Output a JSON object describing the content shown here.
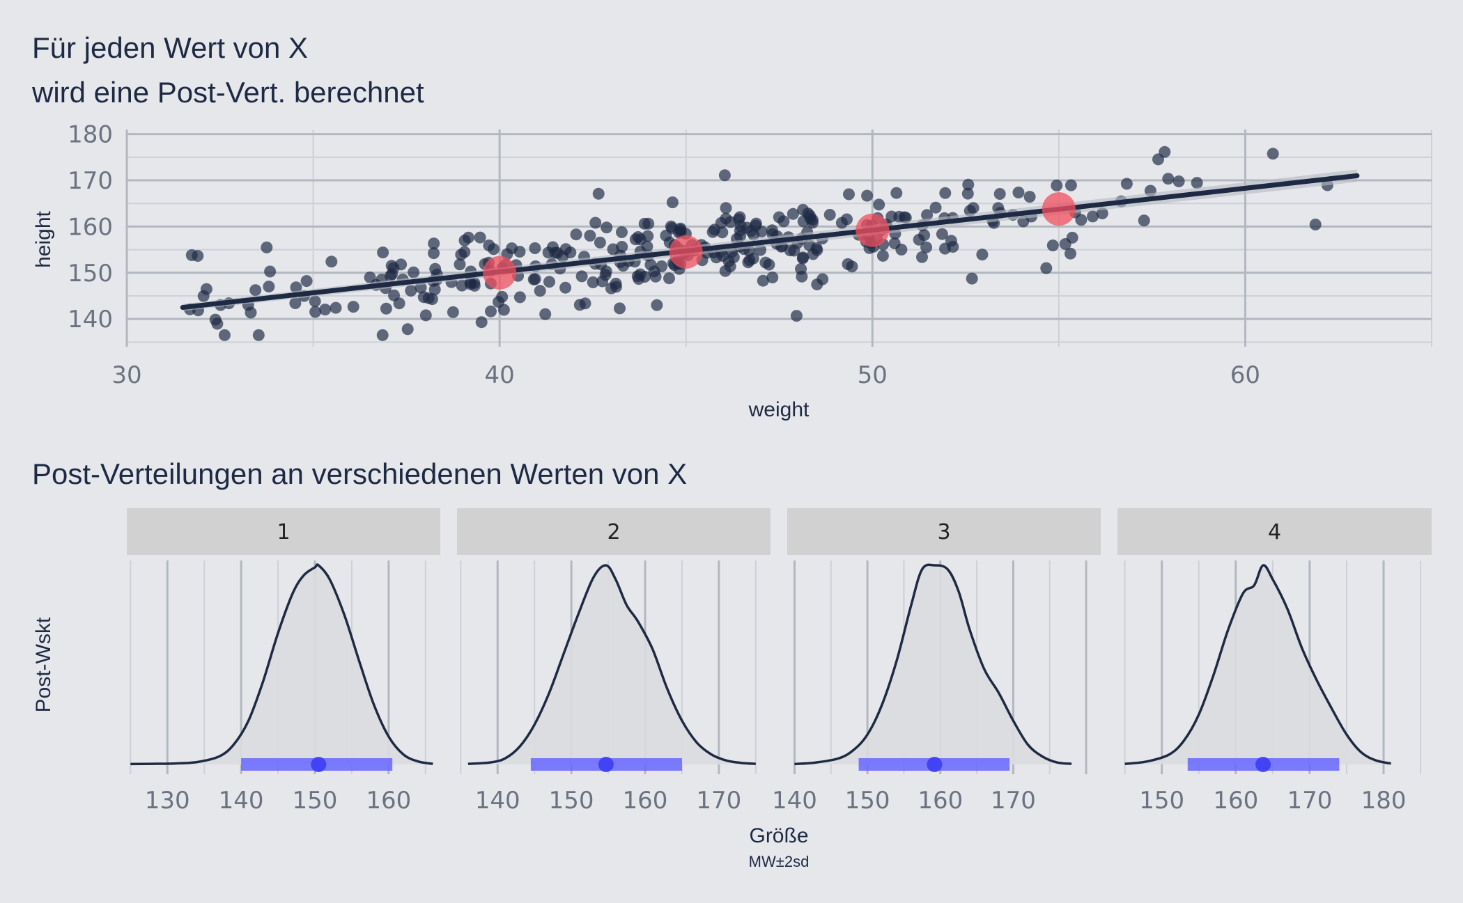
{
  "chart_data": [
    {
      "type": "scatter",
      "title_lines": [
        "Für jeden Wert von X",
        "wird eine Post-Vert. berechnet"
      ],
      "xlabel": "weight",
      "ylabel": "height",
      "xlim": [
        30,
        65
      ],
      "ylim": [
        134,
        181
      ],
      "x_ticks": [
        30,
        40,
        50,
        60
      ],
      "y_ticks": [
        140,
        150,
        160,
        170,
        180
      ],
      "regression_line": {
        "x": [
          31.5,
          63
        ],
        "y": [
          142.5,
          171
        ]
      },
      "highlight_points": {
        "x": [
          40,
          45,
          50,
          55
        ],
        "y": [
          150,
          154.5,
          159.2,
          163.8
        ],
        "color": "#F05060"
      },
      "point_color": "#1E2A44",
      "line_color": "#1E2A44",
      "grid": true
    },
    {
      "type": "area",
      "title": "Post-Verteilungen an verschiedenen Werten von X",
      "xlabel": "Größe",
      "xlabel_sub": "MW±2sd",
      "ylabel": "Post-Wskt",
      "interval_color": "#6666FF",
      "panels": [
        {
          "label": "1",
          "xlim": [
            124.5,
            167
          ],
          "x_ticks": [
            130,
            140,
            150,
            160
          ],
          "mean": 150.5,
          "lo": 140,
          "hi": 160.5,
          "density_x": [
            125,
            128,
            131,
            134,
            137,
            139,
            141,
            143,
            145,
            147,
            148.5,
            150,
            150.5,
            152,
            154,
            156,
            158,
            160,
            162,
            164,
            166
          ],
          "density_y": [
            0.002,
            0.003,
            0.005,
            0.012,
            0.04,
            0.1,
            0.22,
            0.42,
            0.66,
            0.86,
            0.95,
            0.99,
            1.0,
            0.93,
            0.75,
            0.52,
            0.3,
            0.14,
            0.05,
            0.015,
            0.003
          ]
        },
        {
          "label": "2",
          "xlim": [
            134.5,
            177
          ],
          "x_ticks": [
            140,
            150,
            160,
            170
          ],
          "mean": 154.7,
          "lo": 144.5,
          "hi": 165,
          "density_x": [
            136,
            139,
            141,
            143,
            145,
            147,
            149,
            151,
            153,
            154.7,
            156,
            157.5,
            159,
            161,
            163,
            165,
            167,
            169,
            171,
            173,
            175
          ],
          "density_y": [
            0.003,
            0.01,
            0.03,
            0.09,
            0.2,
            0.36,
            0.56,
            0.76,
            0.94,
            1.0,
            0.93,
            0.8,
            0.72,
            0.58,
            0.38,
            0.22,
            0.11,
            0.05,
            0.02,
            0.008,
            0.003
          ]
        },
        {
          "label": "3",
          "xlim": [
            139,
            182
          ],
          "x_ticks": [
            140,
            150,
            160,
            170
          ],
          "mean": 159.2,
          "lo": 148.8,
          "hi": 169.5,
          "density_x": [
            140,
            143,
            146,
            148,
            150,
            152,
            154,
            156,
            157.5,
            159.2,
            161,
            162.5,
            164,
            166,
            168,
            170,
            172,
            174,
            176,
            178
          ],
          "density_y": [
            0.002,
            0.01,
            0.03,
            0.07,
            0.15,
            0.3,
            0.52,
            0.8,
            0.98,
            1.0,
            0.98,
            0.87,
            0.68,
            0.48,
            0.36,
            0.22,
            0.1,
            0.04,
            0.01,
            0.003
          ]
        },
        {
          "label": "4",
          "xlim": [
            144,
            186.5
          ],
          "x_ticks": [
            150,
            160,
            170,
            180
          ],
          "mean": 163.7,
          "lo": 153.5,
          "hi": 174,
          "density_x": [
            145,
            148,
            151,
            153,
            155,
            157,
            159,
            161,
            162.5,
            163.7,
            165,
            167,
            169,
            171,
            173,
            175,
            177,
            179,
            181
          ],
          "density_y": [
            0.003,
            0.015,
            0.05,
            0.12,
            0.25,
            0.45,
            0.68,
            0.86,
            0.9,
            1.0,
            0.93,
            0.78,
            0.58,
            0.42,
            0.28,
            0.15,
            0.06,
            0.02,
            0.005
          ]
        }
      ]
    }
  ]
}
